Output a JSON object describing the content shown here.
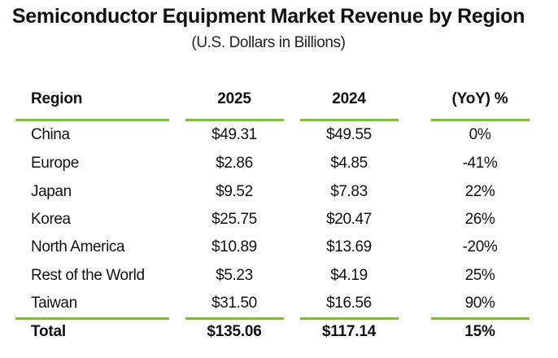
{
  "chart_data": {
    "type": "table",
    "title": "Semiconductor Equipment Market Revenue by Region",
    "subtitle": "(U.S. Dollars in Billions)",
    "columns": [
      "Region",
      "2025",
      "2024",
      "(YoY) %"
    ],
    "rows": [
      [
        "China",
        "$49.31",
        "$49.55",
        "0%"
      ],
      [
        "Europe",
        "$2.86",
        "$4.85",
        "-41%"
      ],
      [
        "Japan",
        "$9.52",
        "$7.83",
        "22%"
      ],
      [
        "Korea",
        "$25.75",
        "$20.47",
        "26%"
      ],
      [
        "North America",
        "$10.89",
        "$13.69",
        "-20%"
      ],
      [
        "Rest of the World",
        "$5.23",
        "$4.19",
        "25%"
      ],
      [
        "Taiwan",
        "$31.50",
        "$16.56",
        "90%"
      ]
    ],
    "total": [
      "Total",
      "$135.06",
      "$117.14",
      "15%"
    ]
  },
  "colors": {
    "rule": "#7dbb42",
    "text": "#111111",
    "background": "#ffffff"
  }
}
